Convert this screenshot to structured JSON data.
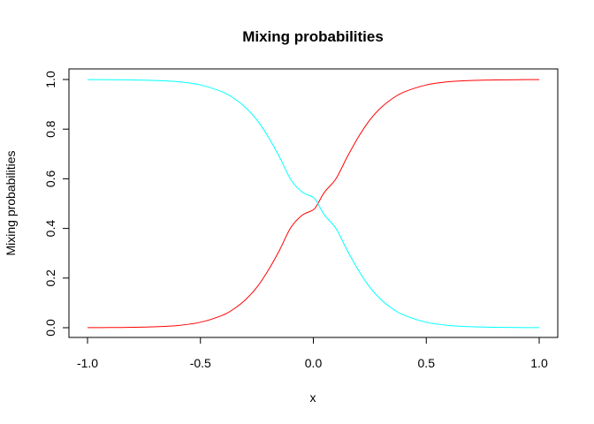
{
  "chart_data": {
    "type": "line",
    "title": "Mixing probabilities",
    "xlabel": "x",
    "ylabel": "Mixing probabilities",
    "xlim": [
      -1.0,
      1.0
    ],
    "ylim": [
      0.0,
      1.0
    ],
    "x_ticks": [
      "-1.0",
      "-0.5",
      "0.0",
      "0.5",
      "1.0"
    ],
    "y_ticks": [
      "0.0",
      "0.2",
      "0.4",
      "0.6",
      "0.8",
      "1.0"
    ],
    "grid": false,
    "x": [
      -1.0,
      -0.9,
      -0.8,
      -0.7,
      -0.6,
      -0.5,
      -0.4,
      -0.35,
      -0.3,
      -0.25,
      -0.2,
      -0.15,
      -0.1,
      -0.05,
      0.0,
      0.02,
      0.05,
      0.1,
      0.15,
      0.2,
      0.25,
      0.3,
      0.35,
      0.4,
      0.5,
      0.6,
      0.7,
      0.8,
      0.9,
      1.0
    ],
    "series": [
      {
        "color": "#ff0000",
        "values": [
          0.0003,
          0.0007,
          0.0017,
          0.004,
          0.009,
          0.022,
          0.051,
          0.077,
          0.113,
          0.163,
          0.231,
          0.312,
          0.403,
          0.453,
          0.475,
          0.5,
          0.547,
          0.6,
          0.688,
          0.769,
          0.837,
          0.887,
          0.923,
          0.949,
          0.978,
          0.991,
          0.996,
          0.998,
          0.9993,
          0.9997
        ]
      },
      {
        "color": "#00ffff",
        "values": [
          0.9997,
          0.9993,
          0.9983,
          0.996,
          0.991,
          0.978,
          0.949,
          0.923,
          0.887,
          0.837,
          0.769,
          0.688,
          0.597,
          0.547,
          0.525,
          0.5,
          0.453,
          0.4,
          0.312,
          0.231,
          0.163,
          0.113,
          0.077,
          0.051,
          0.022,
          0.009,
          0.004,
          0.002,
          0.0007,
          0.0003
        ]
      }
    ]
  }
}
